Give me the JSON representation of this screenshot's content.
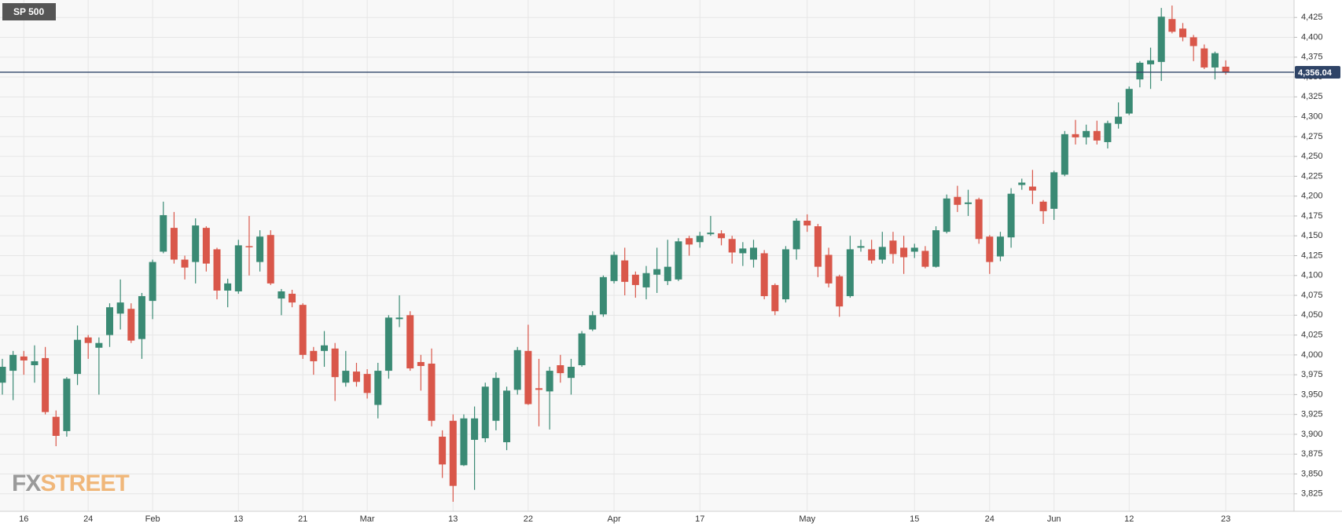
{
  "chart_data": {
    "type": "candlestick",
    "title": "SP 500",
    "logo": [
      "FX",
      "STREET"
    ],
    "categories": [
      null,
      null,
      "16",
      null,
      null,
      null,
      null,
      null,
      "24",
      null,
      null,
      null,
      null,
      null,
      "Feb",
      null,
      null,
      null,
      null,
      null,
      null,
      null,
      "13",
      null,
      null,
      null,
      null,
      null,
      "21",
      null,
      null,
      null,
      null,
      null,
      "Mar",
      null,
      null,
      null,
      null,
      null,
      null,
      null,
      "13",
      null,
      null,
      null,
      null,
      null,
      null,
      "22",
      null,
      null,
      null,
      null,
      null,
      null,
      null,
      "Apr",
      null,
      null,
      null,
      null,
      null,
      null,
      null,
      "17",
      null,
      null,
      null,
      null,
      null,
      null,
      null,
      null,
      null,
      "May",
      null,
      null,
      null,
      null,
      null,
      null,
      null,
      null,
      null,
      "15",
      null,
      null,
      null,
      null,
      null,
      null,
      "24",
      null,
      null,
      null,
      null,
      null,
      "Jun",
      null,
      null,
      null,
      null,
      null,
      null,
      "12",
      null,
      null,
      null,
      null,
      null,
      null,
      null,
      null,
      "23"
    ],
    "open": [
      3965,
      3980,
      3998,
      3987,
      3996,
      3922,
      3904,
      3976,
      4022,
      4009,
      4025,
      4052,
      4058,
      4020,
      4068,
      4130,
      4160,
      4120,
      4117,
      4160,
      4133,
      4081,
      4080,
      4137,
      4117,
      4151,
      4071,
      4077,
      4063,
      4005,
      4005,
      4008,
      3965,
      3979,
      3976,
      3937,
      3980,
      4045,
      4050,
      3991,
      3989,
      3897,
      3917,
      3861,
      3893,
      3895,
      3917,
      3890,
      3956,
      4005,
      3958,
      3954,
      3987,
      3971,
      3987,
      4032,
      4051,
      4093,
      4119,
      4101,
      4085,
      4101,
      4093,
      4095,
      4147,
      4142,
      4152,
      4153,
      4146,
      4128,
      4120,
      4128,
      4088,
      4070,
      4133,
      4169,
      4162,
      4126,
      4099,
      4074,
      4135,
      4133,
      4120,
      4144,
      4135,
      4130,
      4131,
      4111,
      4155,
      4199,
      4190,
      4196,
      4149,
      4124,
      4148,
      4214,
      4212,
      4193,
      4184,
      4227,
      4278,
      4274,
      4282,
      4268,
      4291,
      4304,
      4347,
      4366,
      4369,
      4423,
      4411,
      4400,
      4386,
      4362,
      4363
    ],
    "high": [
      3995,
      4005,
      4005,
      4012,
      4010,
      3930,
      3972,
      4037,
      4025,
      4022,
      4065,
      4095,
      4065,
      4078,
      4120,
      4193,
      4180,
      4125,
      4172,
      4162,
      4135,
      4096,
      4145,
      4175,
      4157,
      4157,
      4083,
      4082,
      4065,
      4010,
      4030,
      4015,
      4005,
      3990,
      3982,
      3990,
      4050,
      4075,
      4055,
      4000,
      4008,
      3905,
      3925,
      3925,
      3935,
      3965,
      3978,
      3960,
      4010,
      4038,
      3995,
      3985,
      4000,
      3995,
      4030,
      4055,
      4100,
      4130,
      4135,
      4105,
      4112,
      4135,
      4145,
      4147,
      4150,
      4155,
      4175,
      4157,
      4150,
      4142,
      4145,
      4132,
      4090,
      4137,
      4172,
      4177,
      4165,
      4135,
      4101,
      4150,
      4145,
      4145,
      4155,
      4155,
      4150,
      4140,
      4137,
      4162,
      4202,
      4213,
      4208,
      4198,
      4151,
      4155,
      4210,
      4222,
      4233,
      4195,
      4232,
      4282,
      4296,
      4290,
      4295,
      4295,
      4318,
      4338,
      4370,
      4387,
      4437,
      4440,
      4418,
      4403,
      4391,
      4382,
      4371
    ],
    "low": [
      3950,
      3943,
      3975,
      3965,
      3925,
      3885,
      3897,
      3962,
      3995,
      3950,
      4010,
      4032,
      4015,
      3995,
      4045,
      4128,
      4115,
      4095,
      4090,
      4105,
      4070,
      4060,
      4077,
      4100,
      4105,
      4088,
      4050,
      4060,
      3995,
      3975,
      3985,
      3942,
      3960,
      3960,
      3945,
      3920,
      3970,
      4035,
      3980,
      3955,
      3910,
      3845,
      3815,
      3860,
      3830,
      3890,
      3905,
      3880,
      3950,
      3937,
      3910,
      3906,
      3965,
      3950,
      3985,
      4030,
      4048,
      4090,
      4075,
      4072,
      4070,
      4078,
      4088,
      4093,
      4125,
      4135,
      4150,
      4138,
      4115,
      4112,
      4110,
      4070,
      4050,
      4066,
      4120,
      4155,
      4098,
      4085,
      4048,
      4072,
      4130,
      4115,
      4115,
      4115,
      4102,
      4122,
      4109,
      4110,
      4153,
      4180,
      4175,
      4140,
      4102,
      4118,
      4135,
      4208,
      4190,
      4165,
      4170,
      4225,
      4265,
      4265,
      4265,
      4260,
      4285,
      4302,
      4337,
      4335,
      4345,
      4405,
      4395,
      4370,
      4360,
      4347,
      4353
    ],
    "close": [
      3985,
      4000,
      3993,
      3992,
      3928,
      3898,
      3970,
      4019,
      4015,
      4015,
      4060,
      4066,
      4018,
      4074,
      4117,
      4176,
      4120,
      4110,
      4163,
      4115,
      4081,
      4090,
      4138,
      4136,
      4149,
      4090,
      4080,
      4066,
      4000,
      3992,
      4012,
      3972,
      3980,
      3966,
      3952,
      3980,
      4047,
      4047,
      3983,
      3986,
      3917,
      3862,
      3835,
      3920,
      3920,
      3960,
      3971,
      3955,
      4006,
      3938,
      3956,
      3980,
      3977,
      3985,
      4027,
      4050,
      4098,
      4126,
      4092,
      4088,
      4103,
      4108,
      4111,
      4143,
      4139,
      4150,
      4154,
      4147,
      4129,
      4134,
      4135,
      4074,
      4055,
      4133,
      4169,
      4163,
      4111,
      4090,
      4061,
      4133,
      4137,
      4119,
      4136,
      4127,
      4123,
      4135,
      4111,
      4157,
      4197,
      4189,
      4192,
      4146,
      4117,
      4149,
      4203,
      4217,
      4207,
      4181,
      4230,
      4278,
      4274,
      4282,
      4270,
      4292,
      4300,
      4335,
      4368,
      4371,
      4426,
      4407,
      4400,
      4389,
      4362,
      4380,
      4356
    ],
    "up_color": "#3a8a74",
    "down_color": "#d9574a",
    "last_value": 4356.04,
    "last_value_label": "4,356.04",
    "last_value_color": "#2f4467",
    "ylim": [
      3803,
      4447
    ],
    "yticks": [
      {
        "value": 3825,
        "label": "3,825"
      },
      {
        "value": 3850,
        "label": "3,850"
      },
      {
        "value": 3875,
        "label": "3,875"
      },
      {
        "value": 3900,
        "label": "3,900"
      },
      {
        "value": 3925,
        "label": "3,925"
      },
      {
        "value": 3950,
        "label": "3,950"
      },
      {
        "value": 3975,
        "label": "3,975"
      },
      {
        "value": 4000,
        "label": "4,000"
      },
      {
        "value": 4025,
        "label": "4,025"
      },
      {
        "value": 4050,
        "label": "4,050"
      },
      {
        "value": 4075,
        "label": "4,075"
      },
      {
        "value": 4100,
        "label": "4,100"
      },
      {
        "value": 4125,
        "label": "4,125"
      },
      {
        "value": 4150,
        "label": "4,150"
      },
      {
        "value": 4175,
        "label": "4,175"
      },
      {
        "value": 4200,
        "label": "4,200"
      },
      {
        "value": 4225,
        "label": "4,225"
      },
      {
        "value": 4250,
        "label": "4,250"
      },
      {
        "value": 4275,
        "label": "4,275"
      },
      {
        "value": 4300,
        "label": "4,300"
      },
      {
        "value": 4325,
        "label": "4,325"
      },
      {
        "value": 4350,
        "label": "4,350"
      },
      {
        "value": 4375,
        "label": "4,375"
      },
      {
        "value": 4400,
        "label": "4,400"
      },
      {
        "value": 4425,
        "label": "4,425"
      }
    ],
    "grid": true
  }
}
